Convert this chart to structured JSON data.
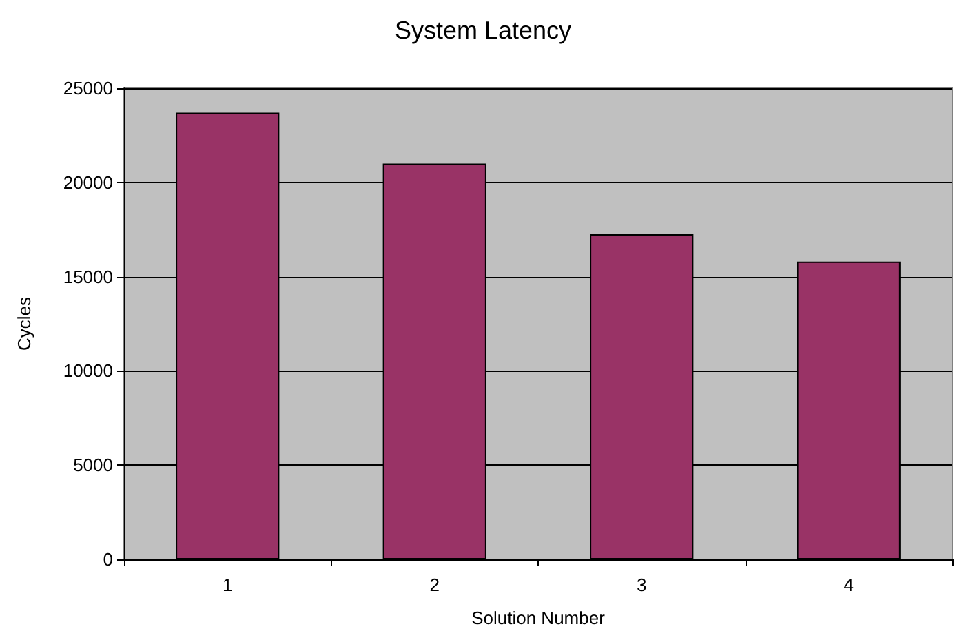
{
  "chart_data": {
    "type": "bar",
    "title": "System Latency",
    "xlabel": "Solution Number",
    "ylabel": "Cycles",
    "categories": [
      "1",
      "2",
      "3",
      "4"
    ],
    "values": [
      23700,
      21000,
      17250,
      15800
    ],
    "color": "#993366",
    "ylim": [
      0,
      25000
    ],
    "yticks": [
      0,
      5000,
      10000,
      15000,
      20000,
      25000
    ],
    "grid": "y"
  }
}
